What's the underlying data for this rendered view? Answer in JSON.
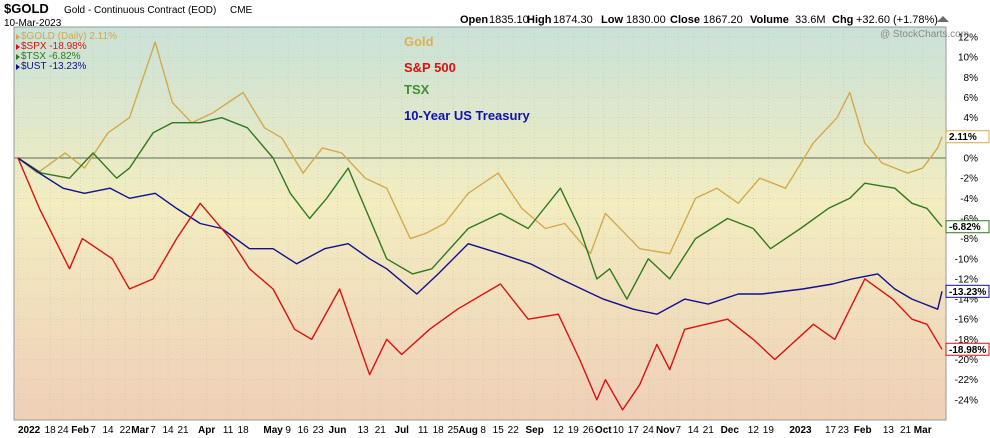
{
  "header": {
    "symbol": "$GOLD",
    "desc": "Gold - Continuous Contract (EOD)",
    "exchange": "CME",
    "date": "10-Mar-2023",
    "open_label": "Open",
    "open": "1835.10",
    "high_label": "High",
    "high": "1874.30",
    "low_label": "Low",
    "low": "1830.00",
    "close_label": "Close",
    "close": "1867.20",
    "volume_label": "Volume",
    "volume": "33.6M",
    "chg_label": "Chg",
    "chg": "+32.60 (+1.78%)",
    "watermark": "@ StockCharts.com"
  },
  "legend": [
    {
      "text": "$GOLD (Daily) 2.11%",
      "color": "#d4a94a"
    },
    {
      "text": "$SPX -18.98%",
      "color": "#dd1111"
    },
    {
      "text": "$TSX -6.82%",
      "color": "#2f7a1f"
    },
    {
      "text": "$UST -13.23%",
      "color": "#101090"
    }
  ],
  "annotations": [
    {
      "text": "Gold",
      "color": "#e0b050"
    },
    {
      "text": "S&P 500",
      "color": "#dd1111"
    },
    {
      "text": "TSX",
      "color": "#3f8f30"
    },
    {
      "text": "10-Year US Treasury",
      "color": "#1010b0"
    }
  ],
  "chart_data": {
    "type": "line",
    "ylim": [
      -26,
      13
    ],
    "y_ticks": [
      12,
      10,
      8,
      6,
      4,
      2,
      0,
      -2,
      -4,
      -6,
      -8,
      -10,
      -12,
      -14,
      -16,
      -18,
      -20,
      -22,
      -24
    ],
    "y_tick_labels": [
      "12%",
      "10%",
      "8%",
      "6%",
      "4%",
      "2%",
      "0%",
      "-2%",
      "-4%",
      "-6%",
      "-8%",
      "-10%",
      "-12%",
      "-14%",
      "-16%",
      "-18%",
      "-20%",
      "-22%",
      "-24%"
    ],
    "x_range": [
      "2022-01-03",
      "2023-03-10"
    ],
    "x_ticks": [
      {
        "label": "2022",
        "date": "2022-01-03",
        "bold": true
      },
      {
        "label": "18",
        "date": "2022-01-18"
      },
      {
        "label": "24",
        "date": "2022-01-24"
      },
      {
        "label": "Feb",
        "date": "2022-02-01",
        "bold": true
      },
      {
        "label": "7",
        "date": "2022-02-07"
      },
      {
        "label": "14",
        "date": "2022-02-14"
      },
      {
        "label": "22",
        "date": "2022-02-22"
      },
      {
        "label": "Mar",
        "date": "2022-03-01",
        "bold": true
      },
      {
        "label": "7",
        "date": "2022-03-07"
      },
      {
        "label": "14",
        "date": "2022-03-14"
      },
      {
        "label": "21",
        "date": "2022-03-21"
      },
      {
        "label": "Apr",
        "date": "2022-04-01",
        "bold": true
      },
      {
        "label": "11",
        "date": "2022-04-11"
      },
      {
        "label": "18",
        "date": "2022-04-18"
      },
      {
        "label": "May",
        "date": "2022-05-02",
        "bold": true
      },
      {
        "label": "9",
        "date": "2022-05-09"
      },
      {
        "label": "16",
        "date": "2022-05-16"
      },
      {
        "label": "23",
        "date": "2022-05-23"
      },
      {
        "label": "Jun",
        "date": "2022-06-01",
        "bold": true
      },
      {
        "label": "13",
        "date": "2022-06-13"
      },
      {
        "label": "21",
        "date": "2022-06-21"
      },
      {
        "label": "Jul",
        "date": "2022-07-01",
        "bold": true
      },
      {
        "label": "11",
        "date": "2022-07-11"
      },
      {
        "label": "18",
        "date": "2022-07-18"
      },
      {
        "label": "25",
        "date": "2022-07-25"
      },
      {
        "label": "Aug",
        "date": "2022-08-01",
        "bold": true
      },
      {
        "label": "8",
        "date": "2022-08-08"
      },
      {
        "label": "15",
        "date": "2022-08-15"
      },
      {
        "label": "22",
        "date": "2022-08-22"
      },
      {
        "label": "Sep",
        "date": "2022-09-01",
        "bold": true
      },
      {
        "label": "12",
        "date": "2022-09-12"
      },
      {
        "label": "19",
        "date": "2022-09-19"
      },
      {
        "label": "26",
        "date": "2022-09-26"
      },
      {
        "label": "Oct",
        "date": "2022-10-03",
        "bold": true
      },
      {
        "label": "10",
        "date": "2022-10-10"
      },
      {
        "label": "17",
        "date": "2022-10-17"
      },
      {
        "label": "24",
        "date": "2022-10-24"
      },
      {
        "label": "Nov",
        "date": "2022-11-01",
        "bold": true
      },
      {
        "label": "7",
        "date": "2022-11-07"
      },
      {
        "label": "14",
        "date": "2022-11-14"
      },
      {
        "label": "21",
        "date": "2022-11-21"
      },
      {
        "label": "Dec",
        "date": "2022-12-01",
        "bold": true
      },
      {
        "label": "12",
        "date": "2022-12-12"
      },
      {
        "label": "19",
        "date": "2022-12-19"
      },
      {
        "label": "2023",
        "date": "2023-01-03",
        "bold": true
      },
      {
        "label": "17",
        "date": "2023-01-17"
      },
      {
        "label": "23",
        "date": "2023-01-23"
      },
      {
        "label": "Feb",
        "date": "2023-02-01",
        "bold": true
      },
      {
        "label": "13",
        "date": "2023-02-13"
      },
      {
        "label": "21",
        "date": "2023-02-21"
      },
      {
        "label": "Mar",
        "date": "2023-03-01",
        "bold": true
      }
    ],
    "end_labels": [
      {
        "text": "2.11%",
        "value": 2.11,
        "color": "#d4a94a"
      },
      {
        "text": "-6.82%",
        "value": -6.82,
        "color": "#2f7a1f"
      },
      {
        "text": "-13.23%",
        "value": -13.23,
        "color": "#101090"
      },
      {
        "text": "-18.98%",
        "value": -18.98,
        "color": "#dd1111"
      }
    ],
    "series": [
      {
        "name": "$GOLD (Daily) 2.11%",
        "color": "#d4a94a",
        "x": [
          "2022-01-03",
          "2022-01-12",
          "2022-01-25",
          "2022-02-03",
          "2022-02-14",
          "2022-02-24",
          "2022-03-08",
          "2022-03-16",
          "2022-03-25",
          "2022-04-04",
          "2022-04-18",
          "2022-04-28",
          "2022-05-06",
          "2022-05-16",
          "2022-05-25",
          "2022-06-03",
          "2022-06-14",
          "2022-06-24",
          "2022-07-05",
          "2022-07-12",
          "2022-07-21",
          "2022-08-01",
          "2022-08-15",
          "2022-08-26",
          "2022-09-06",
          "2022-09-15",
          "2022-09-27",
          "2022-10-04",
          "2022-10-20",
          "2022-11-03",
          "2022-11-15",
          "2022-11-25",
          "2022-12-05",
          "2022-12-15",
          "2022-12-27",
          "2023-01-09",
          "2023-01-20",
          "2023-01-26",
          "2023-02-02",
          "2023-02-10",
          "2023-02-22",
          "2023-03-01",
          "2023-03-08",
          "2023-03-10"
        ],
        "y": [
          0,
          -1.5,
          0.5,
          -1,
          2.5,
          4,
          11.5,
          5.5,
          3.5,
          4.5,
          6.5,
          3,
          2,
          -1.5,
          1,
          0.5,
          -2,
          -3,
          -8,
          -7.5,
          -6.5,
          -3.5,
          -1.5,
          -5,
          -7,
          -6.5,
          -9.5,
          -5.5,
          -9,
          -9.5,
          -4,
          -3,
          -4.5,
          -2,
          -3,
          1.5,
          4,
          6.5,
          1.5,
          -0.5,
          -1.5,
          -1,
          1,
          2.11
        ]
      },
      {
        "name": "$SPX -18.98%",
        "color": "#dd1111",
        "x": [
          "2022-01-03",
          "2022-01-13",
          "2022-01-27",
          "2022-02-02",
          "2022-02-16",
          "2022-02-24",
          "2022-03-07",
          "2022-03-18",
          "2022-03-29",
          "2022-04-12",
          "2022-04-21",
          "2022-05-02",
          "2022-05-12",
          "2022-05-20",
          "2022-06-02",
          "2022-06-16",
          "2022-06-24",
          "2022-07-01",
          "2022-07-14",
          "2022-07-27",
          "2022-08-16",
          "2022-08-29",
          "2022-09-12",
          "2022-09-22",
          "2022-09-30",
          "2022-10-04",
          "2022-10-12",
          "2022-10-20",
          "2022-10-28",
          "2022-11-03",
          "2022-11-10",
          "2022-11-30",
          "2022-12-12",
          "2022-12-22",
          "2023-01-09",
          "2023-01-19",
          "2023-02-02",
          "2023-02-15",
          "2023-02-24",
          "2023-03-03",
          "2023-03-10"
        ],
        "y": [
          0,
          -5,
          -11,
          -8,
          -10,
          -13,
          -12,
          -8,
          -4.5,
          -8,
          -11,
          -13,
          -17,
          -18,
          -13,
          -21.5,
          -18,
          -19.5,
          -17,
          -15,
          -12.5,
          -16,
          -15.5,
          -20,
          -24,
          -22,
          -25,
          -22.5,
          -18.5,
          -21,
          -17,
          -16,
          -18,
          -20,
          -16.5,
          -18,
          -12,
          -14,
          -16,
          -16.5,
          -18.98
        ]
      },
      {
        "name": "$TSX -6.82%",
        "color": "#2f7a1f",
        "x": [
          "2022-01-03",
          "2022-01-14",
          "2022-01-27",
          "2022-02-07",
          "2022-02-18",
          "2022-02-24",
          "2022-03-07",
          "2022-03-16",
          "2022-03-29",
          "2022-04-08",
          "2022-04-20",
          "2022-05-02",
          "2022-05-10",
          "2022-05-19",
          "2022-05-27",
          "2022-06-06",
          "2022-06-16",
          "2022-06-24",
          "2022-07-06",
          "2022-07-15",
          "2022-08-01",
          "2022-08-16",
          "2022-08-29",
          "2022-09-13",
          "2022-09-22",
          "2022-09-30",
          "2022-10-06",
          "2022-10-14",
          "2022-10-24",
          "2022-11-03",
          "2022-11-15",
          "2022-11-30",
          "2022-12-12",
          "2022-12-20",
          "2023-01-03",
          "2023-01-16",
          "2023-01-26",
          "2023-02-02",
          "2023-02-16",
          "2023-02-24",
          "2023-03-03",
          "2023-03-10"
        ],
        "y": [
          0,
          -1.5,
          -2,
          0.5,
          -2,
          -1,
          2.5,
          3.5,
          3.5,
          4,
          3,
          0,
          -3.5,
          -6,
          -4,
          -1,
          -6,
          -10,
          -11.5,
          -11,
          -7,
          -5.5,
          -7,
          -3,
          -7,
          -12,
          -11,
          -14,
          -10,
          -12,
          -8,
          -6,
          -7,
          -9,
          -7,
          -5,
          -4,
          -2.5,
          -3,
          -4.5,
          -5,
          -6.82
        ]
      },
      {
        "name": "$UST -13.23%",
        "color": "#101090",
        "x": [
          "2022-01-03",
          "2022-01-13",
          "2022-01-24",
          "2022-02-03",
          "2022-02-15",
          "2022-02-24",
          "2022-03-08",
          "2022-03-18",
          "2022-03-29",
          "2022-04-08",
          "2022-04-21",
          "2022-05-02",
          "2022-05-13",
          "2022-05-26",
          "2022-06-06",
          "2022-06-16",
          "2022-06-24",
          "2022-07-08",
          "2022-07-18",
          "2022-08-01",
          "2022-08-16",
          "2022-08-30",
          "2022-09-13",
          "2022-09-23",
          "2022-10-03",
          "2022-10-17",
          "2022-10-28",
          "2022-11-10",
          "2022-11-21",
          "2022-12-05",
          "2022-12-16",
          "2023-01-04",
          "2023-01-18",
          "2023-01-27",
          "2023-02-08",
          "2023-02-16",
          "2023-02-24",
          "2023-03-02",
          "2023-03-08",
          "2023-03-10"
        ],
        "y": [
          0,
          -1.5,
          -3,
          -3.5,
          -3,
          -4,
          -3.5,
          -5,
          -6.5,
          -7,
          -9,
          -9,
          -10.5,
          -9,
          -8.5,
          -10,
          -11,
          -13.5,
          -11.5,
          -8.5,
          -9.5,
          -10.5,
          -12,
          -13,
          -14,
          -15,
          -15.5,
          -14,
          -14.5,
          -13.5,
          -13.5,
          -13,
          -12.5,
          -12,
          -11.5,
          -13,
          -14,
          -14.5,
          -15,
          -13.23
        ]
      }
    ]
  }
}
